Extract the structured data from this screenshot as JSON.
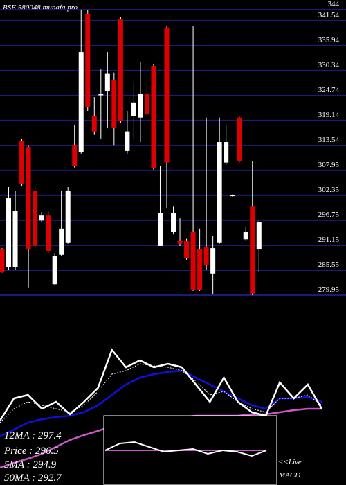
{
  "chart_data": [
    {
      "type": "candlestick",
      "title": "BSE 580048 munafa.pro",
      "open": [
        290.2,
        286.3,
        286.3,
        314.6,
        313.2,
        303.4,
        296.7,
        297.8,
        282.4,
        289.0,
        291.8,
        313.5,
        312.0,
        343.1,
        320.1,
        324.8,
        325.7,
        328.3,
        341.8,
        312.3,
        320.1,
        319.8,
        325.2,
        331.4,
        291.0,
        340.0,
        294.1,
        292.1,
        292.1,
        294.1,
        290.2,
        290.7,
        284.8,
        291.8,
        309.7,
        302.2,
        319.8,
        292.5,
        299.8,
        290.2
      ],
      "high": [
        290.5,
        304.2,
        303.4,
        315.1,
        313.5,
        304.2,
        298.6,
        298.8,
        289.4,
        303.4,
        304.2,
        318.2,
        344,
        344,
        324.4,
        330.6,
        334.5,
        329.9,
        342.3,
        321.3,
        327.5,
        332.2,
        327.5,
        331.9,
        308.9,
        340.3,
        299.8,
        297.2,
        292.6,
        340.3,
        294.9,
        319.8,
        293.3,
        319.8,
        318.2,
        302.6,
        320.1,
        295.2,
        310.1,
        296.7
      ],
      "low": [
        285.0,
        285.6,
        285.6,
        304.5,
        281.7,
        290.5,
        296.4,
        289.4,
        282.1,
        288.7,
        291.5,
        308.6,
        311.7,
        321.3,
        315.9,
        315.1,
        317.4,
        313.5,
        318.5,
        311.7,
        315.1,
        314.3,
        320.1,
        308.1,
        291.0,
        299.5,
        293.6,
        291.0,
        287.9,
        280.9,
        280.9,
        285.6,
        280.1,
        291.5,
        309.2,
        302.0,
        309.7,
        292.1,
        279.95,
        285.1
      ],
      "close": [
        285.2,
        301.7,
        298.8,
        305.0,
        290.2,
        291.0,
        297.8,
        289.9,
        288.7,
        294.9,
        303.4,
        308.9,
        334.5,
        322.1,
        316.7,
        325.1,
        329.6,
        317.4,
        319.0,
        316.7,
        323.2,
        325.2,
        320.5,
        308.4,
        298.3,
        309.7,
        298.3,
        291.5,
        288.3,
        281.2,
        281.2,
        286.6,
        290.5,
        314.3,
        314.3,
        302.4,
        310.0,
        294.1,
        280.3,
        296.4
      ],
      "up_color": "#ffffff",
      "down_color": "#dd0000",
      "grid_color": "#1c1c78",
      "ylim": [
        279.95,
        344
      ],
      "yticks": [
        344,
        341.54,
        335.94,
        330.34,
        324.74,
        319.14,
        313.54,
        307.95,
        302.35,
        296.75,
        291.15,
        285.55,
        279.95
      ]
    },
    {
      "type": "line",
      "ylim": [
        -30,
        100
      ],
      "series": [
        {
          "name": "50MA : 292.7",
          "color": "#cc55cc",
          "dash": false,
          "values": [
            -23.3,
            -18.7,
            -14.7,
            -10,
            -3.3,
            3.3,
            8,
            12,
            16.7,
            20,
            22,
            23.3,
            24.7,
            25.3,
            26.7,
            26.7,
            26.7,
            26.7,
            28,
            28,
            30,
            32,
            33.3,
            33.3
          ]
        },
        {
          "name": "12MA : 297.4",
          "color": "#1010dd",
          "dash": false,
          "values": [
            6.7,
            13.3,
            20,
            23.3,
            25.3,
            26.7,
            30,
            36.7,
            46.7,
            56.7,
            63.3,
            66.7,
            68.7,
            70,
            63.3,
            56.7,
            50,
            43.3,
            36.7,
            33.3,
            43.3,
            43.3,
            44.7,
            40
          ]
        },
        {
          "name": "5MA : 294.9",
          "color": "#ffffff",
          "dash": true,
          "values": [
            20,
            33.3,
            40,
            36.7,
            33.3,
            30,
            36.7,
            50,
            66.7,
            70,
            76.7,
            74.7,
            73.3,
            70,
            60,
            46.7,
            50,
            40,
            33.3,
            30,
            43.3,
            43.3,
            46.7,
            36.7
          ]
        },
        {
          "name": "Price : 296.5",
          "color": "#ffffff",
          "dash": false,
          "values": [
            22,
            43.3,
            46.7,
            33.3,
            40,
            28,
            40,
            53.3,
            90,
            73.3,
            80,
            73.3,
            76.7,
            73.3,
            56.7,
            40,
            63.3,
            40,
            30,
            26.7,
            58.7,
            43.3,
            56.7,
            33.3
          ]
        }
      ]
    },
    {
      "type": "macd",
      "title": "MACD",
      "note": "<<Live",
      "ylim": [
        -10,
        10
      ],
      "series": [
        {
          "color": "#cc55cc",
          "values": [
            0,
            0,
            0,
            0,
            0,
            0,
            0,
            0,
            0,
            0,
            0,
            0
          ]
        },
        {
          "color": "#ffffff",
          "values": [
            0,
            5,
            6,
            2.5,
            -1,
            0,
            1,
            -2.5,
            0,
            -1,
            -4,
            0
          ]
        }
      ]
    }
  ]
}
